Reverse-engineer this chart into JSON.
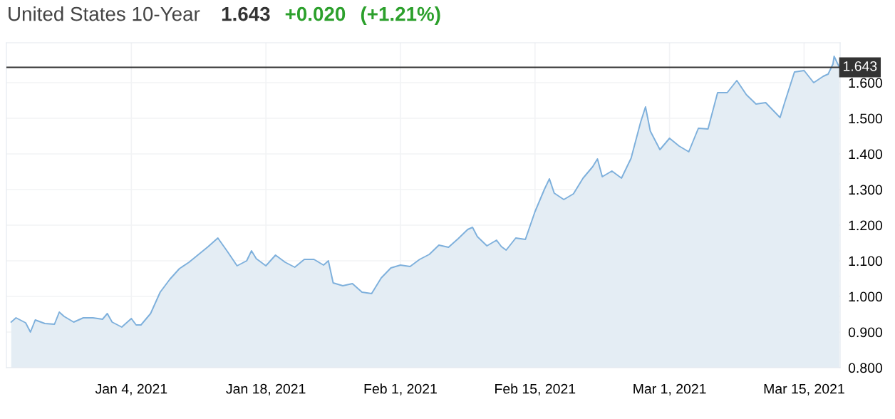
{
  "chart_data": {
    "type": "area",
    "title": "United States 10-Year",
    "annotations": [
      "1.643",
      "+0.020",
      "(+1.21%)"
    ],
    "x": [
      "2020-12-22T12:00",
      "2020-12-23",
      "2020-12-24",
      "2020-12-24T12:00",
      "2020-12-25",
      "2020-12-26",
      "2020-12-27",
      "2020-12-27T12:00",
      "2020-12-28",
      "2020-12-29",
      "2020-12-30",
      "2020-12-31",
      "2021-01-01",
      "2021-01-01T12:00",
      "2021-01-02",
      "2021-01-03",
      "2021-01-04",
      "2021-01-04T12:00",
      "2021-01-05",
      "2021-01-06",
      "2021-01-07",
      "2021-01-08",
      "2021-01-09",
      "2021-01-10",
      "2021-01-11",
      "2021-01-12",
      "2021-01-13",
      "2021-01-14",
      "2021-01-15",
      "2021-01-16",
      "2021-01-16T12:00",
      "2021-01-17",
      "2021-01-18",
      "2021-01-19",
      "2021-01-20",
      "2021-01-21",
      "2021-01-22",
      "2021-01-23",
      "2021-01-24",
      "2021-01-24T12:00",
      "2021-01-25",
      "2021-01-26",
      "2021-01-27",
      "2021-01-28",
      "2021-01-29",
      "2021-01-30",
      "2021-01-31",
      "2021-02-01",
      "2021-02-02",
      "2021-02-03",
      "2021-02-04",
      "2021-02-05",
      "2021-02-06",
      "2021-02-07",
      "2021-02-08",
      "2021-02-08T12:00",
      "2021-02-09",
      "2021-02-10",
      "2021-02-11",
      "2021-02-11T12:00",
      "2021-02-12",
      "2021-02-13",
      "2021-02-14",
      "2021-02-15",
      "2021-02-16",
      "2021-02-16T12:00",
      "2021-02-17",
      "2021-02-18",
      "2021-02-19",
      "2021-02-20",
      "2021-02-21",
      "2021-02-21T12:00",
      "2021-02-22",
      "2021-02-23",
      "2021-02-24",
      "2021-02-25",
      "2021-02-26",
      "2021-02-26T12:00",
      "2021-02-27",
      "2021-02-28",
      "2021-03-01",
      "2021-03-02",
      "2021-03-03",
      "2021-03-04",
      "2021-03-05",
      "2021-03-06",
      "2021-03-07",
      "2021-03-08",
      "2021-03-09",
      "2021-03-10",
      "2021-03-11",
      "2021-03-12",
      "2021-03-12T12:00",
      "2021-03-13",
      "2021-03-14",
      "2021-03-15",
      "2021-03-16",
      "2021-03-17",
      "2021-03-17T12:00",
      "2021-03-18",
      "2021-03-18T03:00",
      "2021-03-18T16:00"
    ],
    "series": [
      {
        "color": "#7eb0dc",
        "values": [
          0.928,
          0.94,
          0.926,
          0.9,
          0.934,
          0.924,
          0.922,
          0.956,
          0.944,
          0.928,
          0.94,
          0.94,
          0.936,
          0.952,
          0.928,
          0.914,
          0.938,
          0.92,
          0.92,
          0.952,
          1.012,
          1.048,
          1.078,
          1.096,
          1.118,
          1.14,
          1.164,
          1.126,
          1.086,
          1.1,
          1.128,
          1.106,
          1.086,
          1.116,
          1.096,
          1.082,
          1.104,
          1.104,
          1.088,
          1.1,
          1.038,
          1.03,
          1.036,
          1.012,
          1.008,
          1.052,
          1.08,
          1.088,
          1.084,
          1.104,
          1.118,
          1.144,
          1.138,
          1.162,
          1.188,
          1.194,
          1.168,
          1.142,
          1.158,
          1.14,
          1.13,
          1.164,
          1.16,
          1.238,
          1.302,
          1.33,
          1.29,
          1.272,
          1.288,
          1.332,
          1.364,
          1.386,
          1.336,
          1.352,
          1.332,
          1.388,
          1.49,
          1.532,
          1.464,
          1.412,
          1.444,
          1.422,
          1.406,
          1.472,
          1.47,
          1.572,
          1.572,
          1.606,
          1.566,
          1.54,
          1.544,
          1.516,
          1.502,
          1.546,
          1.63,
          1.634,
          1.6,
          1.618,
          1.624,
          1.652,
          1.674,
          1.643
        ]
      }
    ],
    "xlim": [
      "2020-12-22",
      "2021-03-18T18:00"
    ],
    "xticks": [
      {
        "value": "2021-01-04",
        "label": "Jan 4, 2021"
      },
      {
        "value": "2021-01-18",
        "label": "Jan 18, 2021"
      },
      {
        "value": "2021-02-01",
        "label": "Feb 1, 2021"
      },
      {
        "value": "2021-02-15",
        "label": "Feb 15, 2021"
      },
      {
        "value": "2021-03-01",
        "label": "Mar 1, 2021"
      },
      {
        "value": "2021-03-15",
        "label": "Mar 15, 2021"
      }
    ],
    "ylim": [
      0.8,
      1.712
    ],
    "yticks": [
      {
        "value": 0.8,
        "label": "0.800"
      },
      {
        "value": 0.9,
        "label": "0.900"
      },
      {
        "value": 1.0,
        "label": "1.000"
      },
      {
        "value": 1.1,
        "label": "1.100"
      },
      {
        "value": 1.2,
        "label": "1.200"
      },
      {
        "value": 1.3,
        "label": "1.300"
      },
      {
        "value": 1.4,
        "label": "1.400"
      },
      {
        "value": 1.5,
        "label": "1.500"
      },
      {
        "value": 1.6,
        "label": "1.600"
      }
    ],
    "ref_lines": [
      {
        "axis": "y",
        "value": 1.643,
        "label": "1.643",
        "color": "#333333",
        "line_style": "solid"
      }
    ],
    "grid": true,
    "legend": false,
    "marker": "none",
    "line_style": "solid"
  }
}
